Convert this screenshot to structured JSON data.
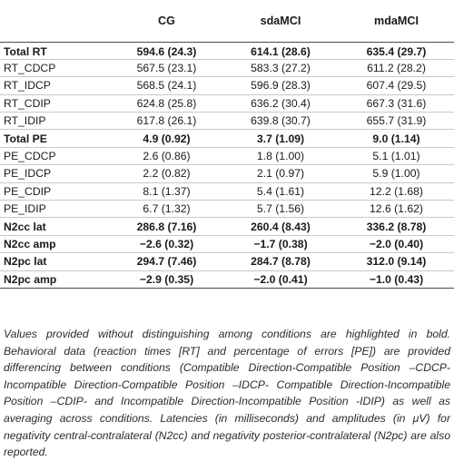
{
  "table": {
    "headers": [
      "",
      "CG",
      "sdaMCI",
      "mdaMCI"
    ],
    "rows": [
      {
        "label": "Total RT",
        "bold": true,
        "values": [
          "594.6 (24.3)",
          "614.1 (28.6)",
          "635.4 (29.7)"
        ]
      },
      {
        "label": "RT_CDCP",
        "bold": false,
        "values": [
          "567.5 (23.1)",
          "583.3 (27.2)",
          "611.2 (28.2)"
        ]
      },
      {
        "label": "RT_IDCP",
        "bold": false,
        "values": [
          "568.5 (24.1)",
          "596.9 (28.3)",
          "607.4 (29.5)"
        ]
      },
      {
        "label": "RT_CDIP",
        "bold": false,
        "values": [
          "624.8 (25.8)",
          "636.2 (30.4)",
          "667.3 (31.6)"
        ]
      },
      {
        "label": "RT_IDIP",
        "bold": false,
        "values": [
          "617.8 (26.1)",
          "639.8 (30.7)",
          "655.7 (31.9)"
        ]
      },
      {
        "label": "Total PE",
        "bold": true,
        "values": [
          "4.9 (0.92)",
          "3.7 (1.09)",
          "9.0 (1.14)"
        ]
      },
      {
        "label": "PE_CDCP",
        "bold": false,
        "values": [
          "2.6 (0.86)",
          "1.8 (1.00)",
          "5.1 (1.01)"
        ]
      },
      {
        "label": "PE_IDCP",
        "bold": false,
        "values": [
          "2.2 (0.82)",
          "2.1 (0.97)",
          "5.9 (1.00)"
        ]
      },
      {
        "label": "PE_CDIP",
        "bold": false,
        "values": [
          "8.1 (1.37)",
          "5.4 (1.61)",
          "12.2 (1.68)"
        ]
      },
      {
        "label": "PE_IDIP",
        "bold": false,
        "values": [
          "6.7 (1.32)",
          "5.7 (1.56)",
          "12.6 (1.62)"
        ]
      },
      {
        "label": "N2cc lat",
        "bold": true,
        "values": [
          "286.8 (7.16)",
          "260.4 (8.43)",
          "336.2 (8.78)"
        ]
      },
      {
        "label": "N2cc amp",
        "bold": true,
        "values": [
          "−2.6 (0.32)",
          "−1.7 (0.38)",
          "−2.0 (0.40)"
        ]
      },
      {
        "label": "N2pc lat",
        "bold": true,
        "values": [
          "294.7 (7.46)",
          "284.7 (8.78)",
          "312.0 (9.14)"
        ]
      },
      {
        "label": "N2pc amp",
        "bold": true,
        "values": [
          "−2.9 (0.35)",
          "−2.0 (0.41)",
          "−1.0 (0.43)"
        ]
      }
    ]
  },
  "footnote": "Values provided without distinguishing among conditions are highlighted in bold. Behavioral data (reaction times [RT] and percentage of errors [PE]) are provided differencing between conditions (Compatible Direction-Compatible Position –CDCP- Incompatible Direction-Compatible Position –IDCP- Compatible Direction-Incompatible Position –CDIP- and Incompatible Direction-Incompatible Position -IDIP) as well as averaging across conditions. Latencies (in milliseconds) and amplitudes (in μV) for negativity central-contralateral (N2cc) and negativity posterior-contralateral (N2pc) are also reported."
}
